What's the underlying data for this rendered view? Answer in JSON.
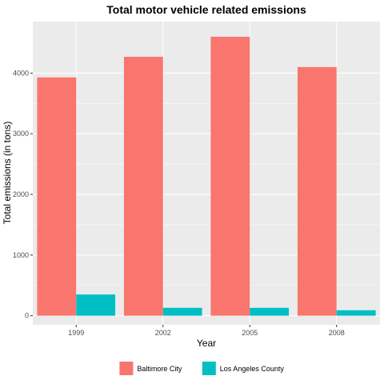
{
  "chart_data": {
    "type": "bar",
    "title": "Total motor vehicle related emissions",
    "xlabel": "Year",
    "ylabel": "Total emissions (in tons)",
    "categories": [
      "1999",
      "2002",
      "2005",
      "2008"
    ],
    "series": [
      {
        "name": "Baltimore City",
        "color": "#F8766D",
        "values": [
          3930,
          4270,
          4600,
          4100
        ]
      },
      {
        "name": "Los Angeles County",
        "color": "#00BFC4",
        "values": [
          350,
          130,
          130,
          90
        ]
      }
    ],
    "ylim": [
      -150,
      4850
    ],
    "yticks": [
      0,
      1000,
      2000,
      3000,
      4000
    ],
    "ytick_labels": [
      "0",
      "1000",
      "2000",
      "3000",
      "4000"
    ],
    "grid": true,
    "panel_color": "#EBEBEB",
    "legend_position": "bottom"
  }
}
